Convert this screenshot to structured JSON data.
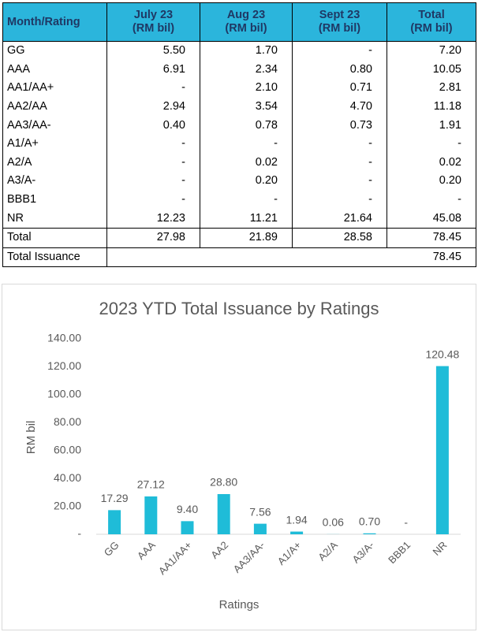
{
  "table": {
    "header": [
      [
        "Month/Rating"
      ],
      [
        "July 23",
        "(RM bil)"
      ],
      [
        "Aug 23",
        "(RM bil)"
      ],
      [
        "Sept 23",
        "(RM bil)"
      ],
      [
        "Total",
        "(RM bil)"
      ]
    ],
    "rows": [
      [
        "GG",
        "5.50",
        "1.70",
        "-",
        "7.20"
      ],
      [
        "AAA",
        "6.91",
        "2.34",
        "0.80",
        "10.05"
      ],
      [
        "AA1/AA+",
        "-",
        "2.10",
        "0.71",
        "2.81"
      ],
      [
        "AA2/AA",
        "2.94",
        "3.54",
        "4.70",
        "11.18"
      ],
      [
        "AA3/AA-",
        "0.40",
        "0.78",
        "0.73",
        "1.91"
      ],
      [
        "A1/A+",
        "-",
        "-",
        "-",
        "-"
      ],
      [
        "A2/A",
        "-",
        "0.02",
        "-",
        "0.02"
      ],
      [
        "A3/A-",
        "-",
        "0.20",
        "-",
        "0.20"
      ],
      [
        "BBB1",
        "-",
        "-",
        "-",
        "-"
      ],
      [
        "NR",
        "12.23",
        "11.21",
        "21.64",
        "45.08"
      ]
    ],
    "total": [
      "Total",
      "27.98",
      "21.89",
      "28.58",
      "78.45"
    ],
    "total_issuance": [
      "Total Issuance",
      "78.45"
    ]
  },
  "chart_data": {
    "type": "bar",
    "title": "2023 YTD Total Issuance by Ratings",
    "y_label": "RM bil",
    "x_label": "Ratings",
    "categories": [
      "GG",
      "AAA",
      "AA1/AA+",
      "AA2",
      "AA3/AA-",
      "A1/A+",
      "A2/A",
      "A3/A-",
      "BBB1",
      "NR"
    ],
    "values": [
      17.29,
      27.12,
      9.4,
      28.8,
      7.56,
      1.94,
      0.06,
      0.7,
      0,
      120.48
    ],
    "value_labels": [
      "17.29",
      "27.12",
      "9.40",
      "28.80",
      "7.56",
      "1.94",
      "0.06",
      "0.70",
      "-",
      "120.48"
    ],
    "color": "#1fbcd8",
    "ylim": [
      0,
      140
    ],
    "yticks": [
      {
        "value": 0,
        "label": "-"
      },
      {
        "value": 20,
        "label": "20.00"
      },
      {
        "value": 40,
        "label": "40.00"
      },
      {
        "value": 60,
        "label": "60.00"
      },
      {
        "value": 80,
        "label": "80.00"
      },
      {
        "value": 100,
        "label": "100.00"
      },
      {
        "value": 120,
        "label": "120.00"
      },
      {
        "value": 140,
        "label": "140.00"
      }
    ],
    "grid": false
  }
}
